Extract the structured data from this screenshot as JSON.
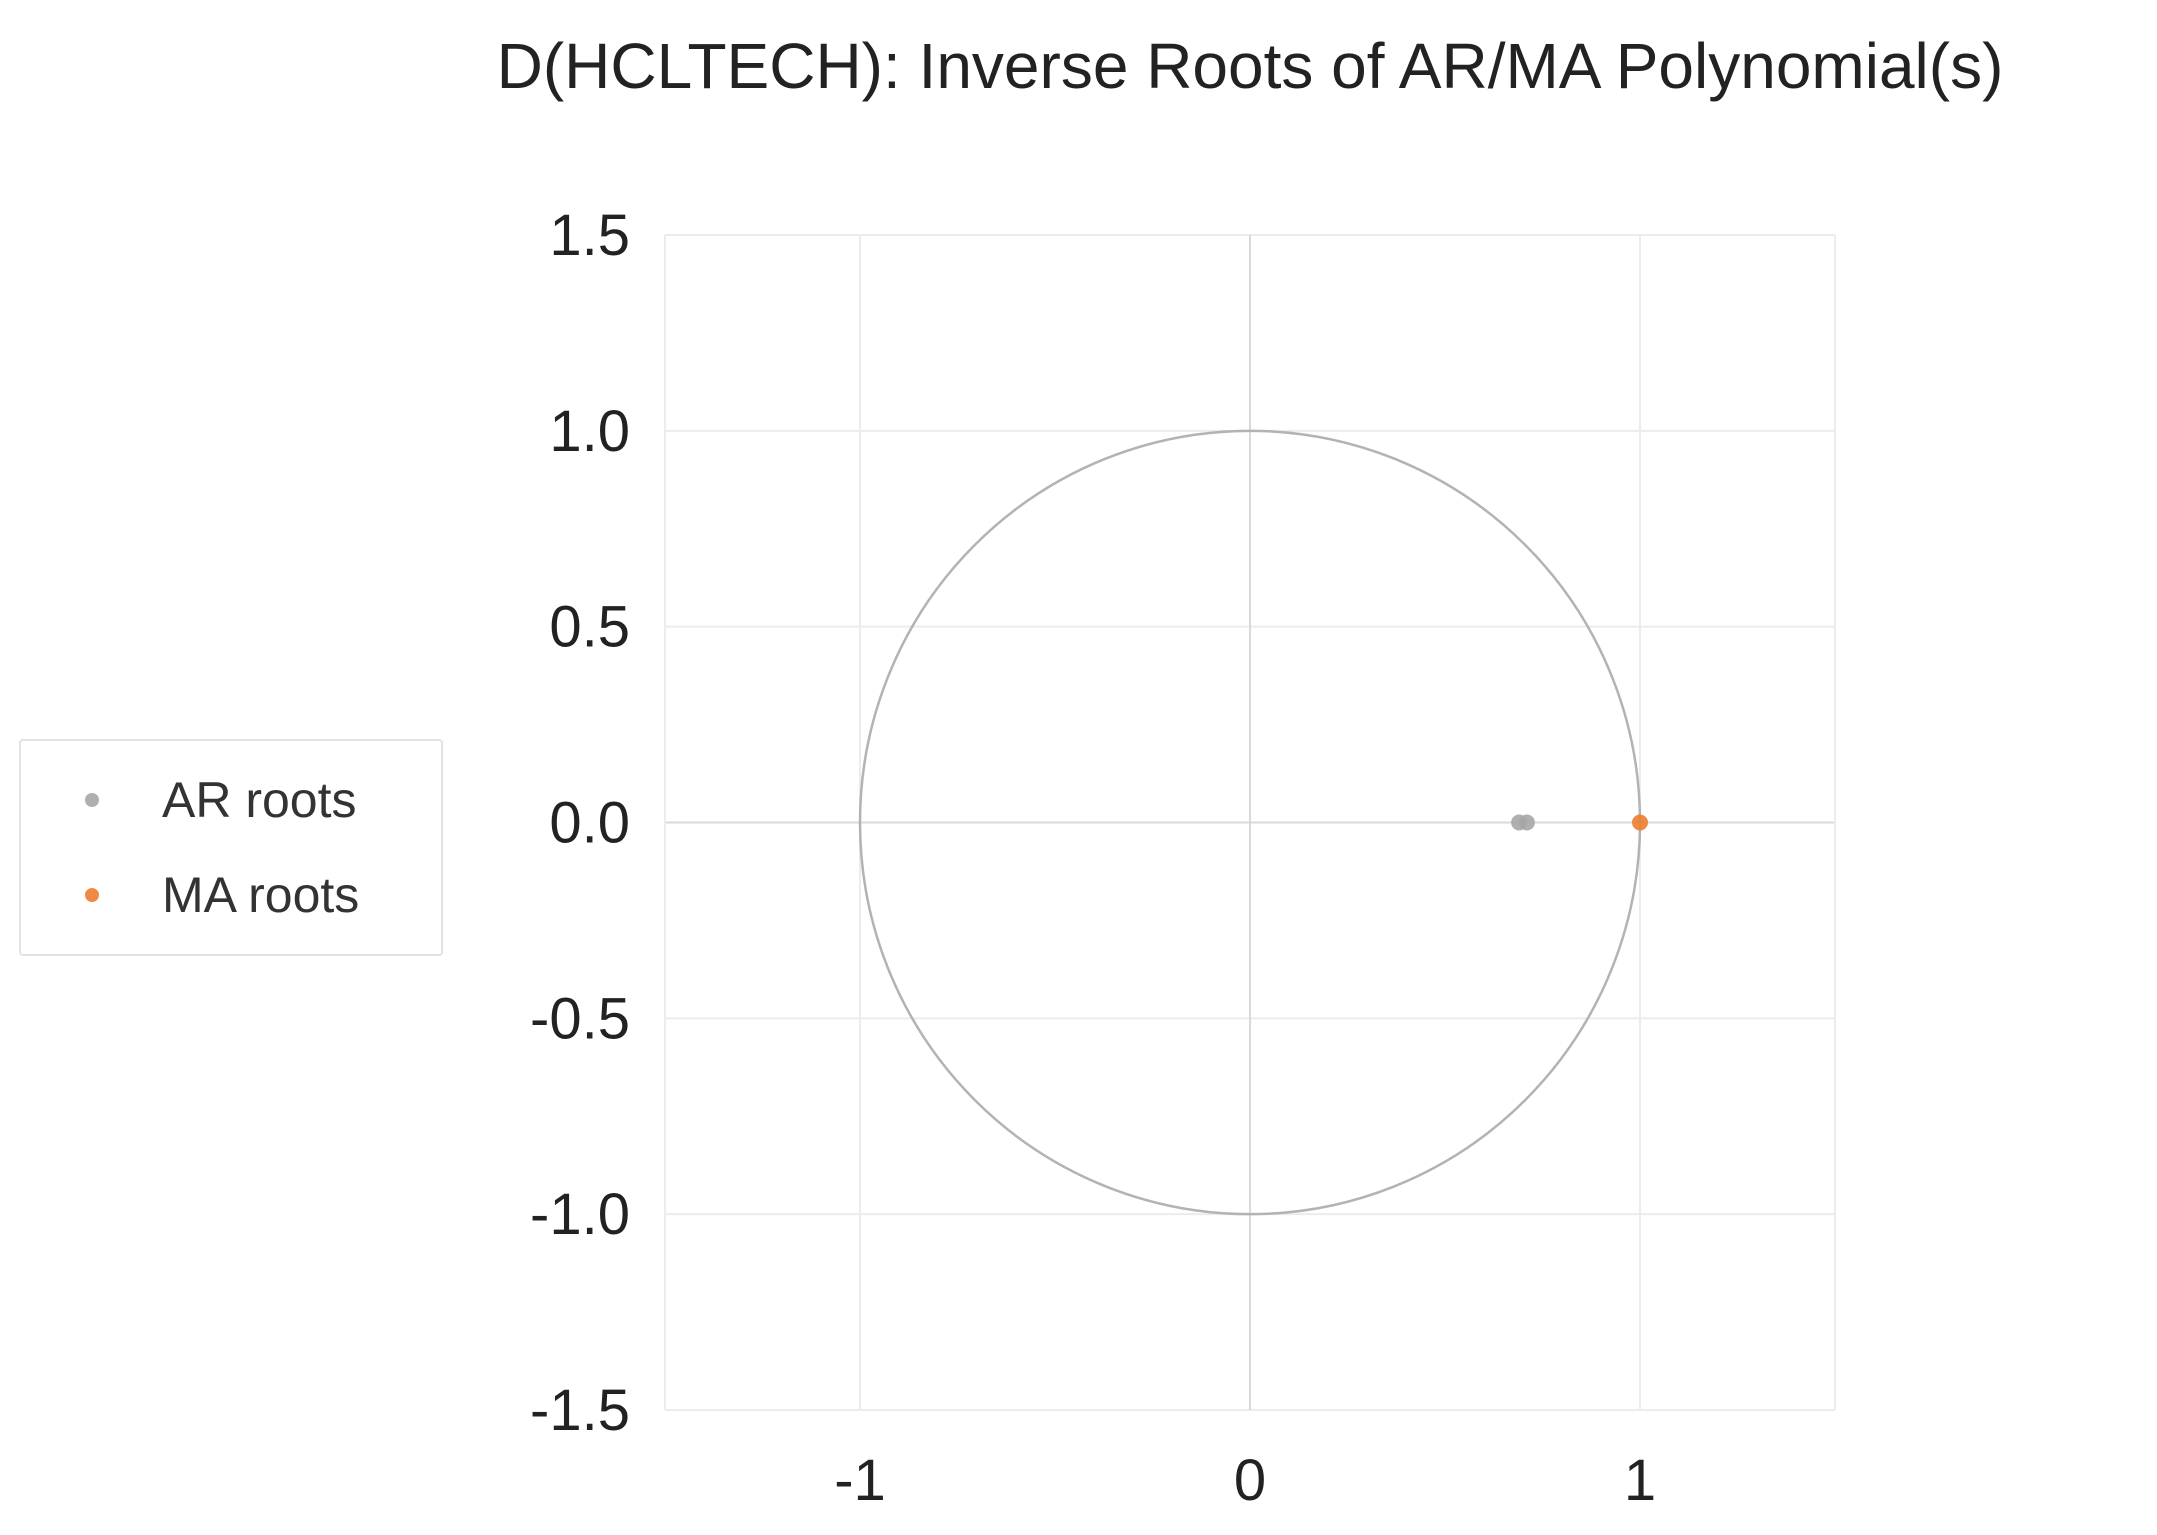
{
  "chart_data": {
    "type": "scatter",
    "title": "D(HCLTECH): Inverse Roots of AR/MA Polynomial(s)",
    "xlabel": "",
    "ylabel": "",
    "xlim": [
      -1.5,
      1.5
    ],
    "ylim": [
      -1.5,
      1.5
    ],
    "x_ticks": [
      -1,
      0,
      1
    ],
    "x_tick_labels": [
      "-1",
      "0",
      "1"
    ],
    "y_ticks": [
      1.5,
      1.0,
      0.5,
      0.0,
      -0.5,
      -1.0,
      -1.5
    ],
    "y_tick_labels": [
      "1.5",
      "1.0",
      "0.5",
      "0.0",
      "-0.5",
      "-1.0",
      "-1.5"
    ],
    "grid": true,
    "unit_circle": {
      "center": [
        0,
        0
      ],
      "radius": 1,
      "color": "#b3b3b3"
    },
    "legend_position": "left",
    "series": [
      {
        "name": "AR roots",
        "color": "#a6a6a6",
        "points": [
          {
            "x": 0.69,
            "y": 0.0
          },
          {
            "x": 0.71,
            "y": 0.0
          }
        ]
      },
      {
        "name": "MA roots",
        "color": "#ed7d31",
        "points": [
          {
            "x": 1.0,
            "y": 0.0
          }
        ]
      }
    ]
  }
}
